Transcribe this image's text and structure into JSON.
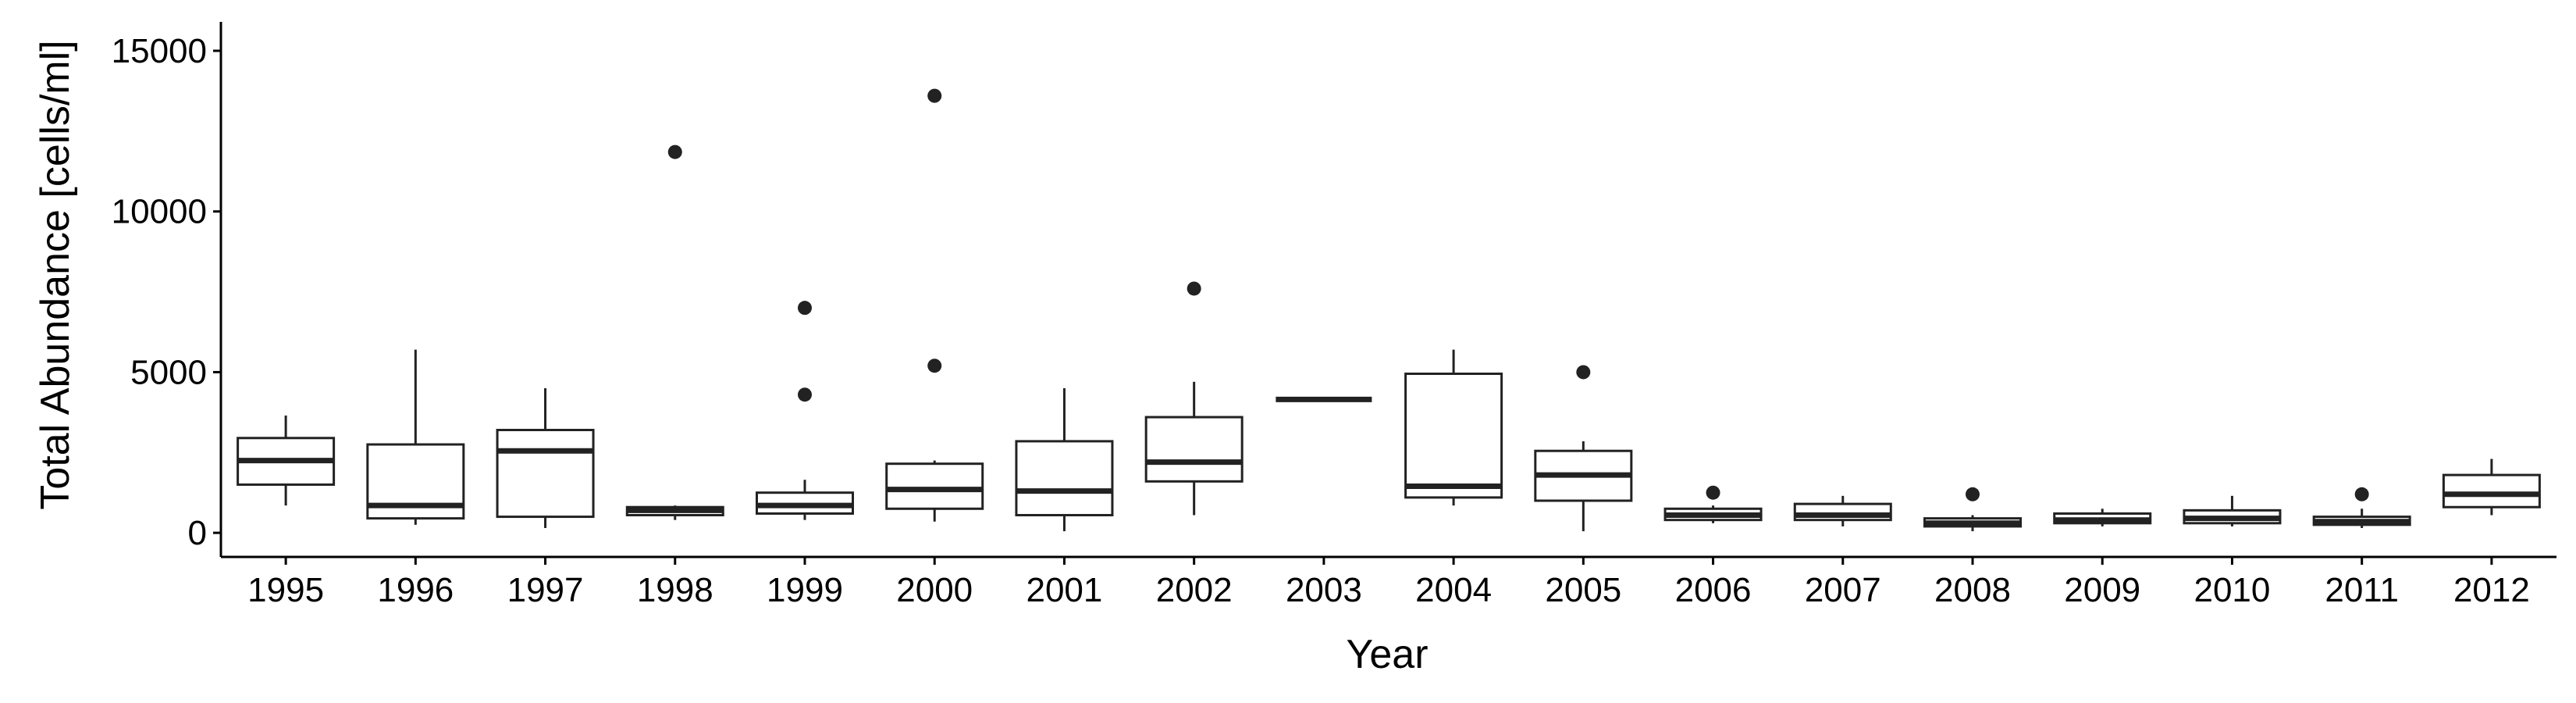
{
  "chart_data": {
    "type": "boxplot",
    "xlabel": "Year",
    "ylabel": "Total Abundance [cells/ml]",
    "ylim": [
      -750,
      15900
    ],
    "yticks": [
      0,
      5000,
      10000,
      15000
    ],
    "grid": false,
    "legend": "none",
    "colors": {
      "box_fill": "#ffffff",
      "line": "#222222",
      "axis": "#000000"
    },
    "categories": [
      "1995",
      "1996",
      "1997",
      "1998",
      "1999",
      "2000",
      "2001",
      "2002",
      "2003",
      "2004",
      "2005",
      "2006",
      "2007",
      "2008",
      "2009",
      "2010",
      "2011",
      "2012"
    ],
    "boxes": [
      {
        "x": "1995",
        "whisker_low": 850,
        "q1": 1500,
        "median": 2250,
        "q3": 2950,
        "whisker_high": 3650,
        "outliers": []
      },
      {
        "x": "1996",
        "whisker_low": 250,
        "q1": 450,
        "median": 850,
        "q3": 2750,
        "whisker_high": 5700,
        "outliers": []
      },
      {
        "x": "1997",
        "whisker_low": 150,
        "q1": 500,
        "median": 2550,
        "q3": 3200,
        "whisker_high": 4500,
        "outliers": []
      },
      {
        "x": "1998",
        "whisker_low": 400,
        "q1": 550,
        "median": 700,
        "q3": 800,
        "whisker_high": 850,
        "outliers": [
          11850
        ]
      },
      {
        "x": "1999",
        "whisker_low": 400,
        "q1": 600,
        "median": 850,
        "q3": 1250,
        "whisker_high": 1650,
        "outliers": [
          4300,
          7000
        ]
      },
      {
        "x": "2000",
        "whisker_low": 350,
        "q1": 750,
        "median": 1350,
        "q3": 2150,
        "whisker_high": 2250,
        "outliers": [
          5200,
          13600
        ]
      },
      {
        "x": "2001",
        "whisker_low": 50,
        "q1": 550,
        "median": 1300,
        "q3": 2850,
        "whisker_high": 4500,
        "outliers": []
      },
      {
        "x": "2002",
        "whisker_low": 550,
        "q1": 1600,
        "median": 2200,
        "q3": 3600,
        "whisker_high": 4700,
        "outliers": [
          7600
        ]
      },
      {
        "x": "2003",
        "whisker_low": 4150,
        "q1": 4150,
        "median": 4150,
        "q3": 4150,
        "whisker_high": 4150,
        "outliers": []
      },
      {
        "x": "2004",
        "whisker_low": 850,
        "q1": 1100,
        "median": 1450,
        "q3": 4950,
        "whisker_high": 5700,
        "outliers": []
      },
      {
        "x": "2005",
        "whisker_low": 50,
        "q1": 1000,
        "median": 1800,
        "q3": 2550,
        "whisker_high": 2850,
        "outliers": [
          5000
        ]
      },
      {
        "x": "2006",
        "whisker_low": 300,
        "q1": 400,
        "median": 550,
        "q3": 750,
        "whisker_high": 850,
        "outliers": [
          1250
        ]
      },
      {
        "x": "2007",
        "whisker_low": 200,
        "q1": 400,
        "median": 550,
        "q3": 900,
        "whisker_high": 1150,
        "outliers": []
      },
      {
        "x": "2008",
        "whisker_low": 50,
        "q1": 200,
        "median": 300,
        "q3": 450,
        "whisker_high": 550,
        "outliers": [
          1200
        ]
      },
      {
        "x": "2009",
        "whisker_low": 200,
        "q1": 300,
        "median": 400,
        "q3": 600,
        "whisker_high": 750,
        "outliers": []
      },
      {
        "x": "2010",
        "whisker_low": 200,
        "q1": 300,
        "median": 450,
        "q3": 700,
        "whisker_high": 1150,
        "outliers": []
      },
      {
        "x": "2011",
        "whisker_low": 150,
        "q1": 250,
        "median": 350,
        "q3": 500,
        "whisker_high": 750,
        "outliers": [
          1200
        ]
      },
      {
        "x": "2012",
        "whisker_low": 550,
        "q1": 800,
        "median": 1200,
        "q3": 1800,
        "whisker_high": 2300,
        "outliers": []
      }
    ]
  }
}
